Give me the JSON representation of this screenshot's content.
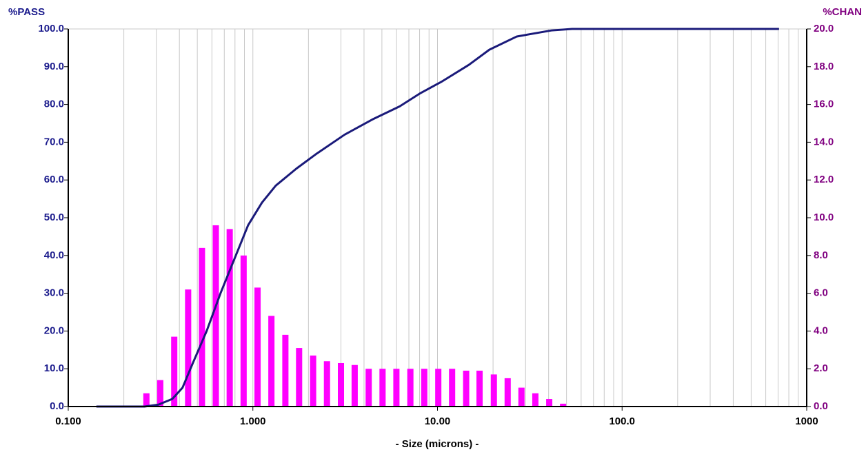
{
  "chart_data": {
    "type": "combo",
    "xlabel": "- Size (microns) -",
    "ylabel": "%PASS",
    "y2label": "%CHAN",
    "xlog": true,
    "xlim": [
      0.1,
      1000
    ],
    "xticks": [
      {
        "value": 0.1,
        "label": "0.100"
      },
      {
        "value": 1,
        "label": "1.000"
      },
      {
        "value": 10,
        "label": "10.00"
      },
      {
        "value": 100,
        "label": "100.0"
      },
      1000
    ],
    "xminorticks": [
      0.2,
      0.3,
      0.4,
      0.5,
      0.6,
      0.7,
      0.8,
      0.9,
      2,
      3,
      4,
      5,
      6,
      7,
      8,
      9,
      20,
      30,
      40,
      50,
      60,
      70,
      80,
      90,
      200,
      300,
      400,
      500,
      600,
      700,
      800,
      900
    ],
    "grid": true,
    "ylim": [
      0,
      100
    ],
    "yticks": [
      {
        "value": 0,
        "label": "0.0"
      },
      {
        "value": 10,
        "label": "10.0"
      },
      {
        "value": 20,
        "label": "20.0"
      },
      {
        "value": 30,
        "label": "30.0"
      },
      {
        "value": 40,
        "label": "40.0"
      },
      {
        "value": 50,
        "label": "50.0"
      },
      {
        "value": 60,
        "label": "60.0"
      },
      {
        "value": 70,
        "label": "70.0"
      },
      {
        "value": 80,
        "label": "80.0"
      },
      {
        "value": 90,
        "label": "90.0"
      },
      {
        "value": 100,
        "label": "100.0"
      }
    ],
    "y2lim": [
      0,
      20
    ],
    "y2ticks": [
      {
        "value": 0,
        "label": "0.0"
      },
      {
        "value": 2,
        "label": "2.0"
      },
      {
        "value": 4,
        "label": "4.0"
      },
      {
        "value": 6,
        "label": "6.0"
      },
      {
        "value": 8,
        "label": "8.0"
      },
      {
        "value": 10,
        "label": "10.0"
      },
      {
        "value": 12,
        "label": "12.0"
      },
      {
        "value": 14,
        "label": "14.0"
      },
      {
        "value": 16,
        "label": "16.0"
      },
      {
        "value": 18,
        "label": "18.0"
      },
      {
        "value": 20,
        "label": "20.0"
      }
    ],
    "ycolor": "#1a1a8c",
    "y2color": "#800080",
    "series": [
      {
        "type": "bar",
        "axis": "y2",
        "color": "#ff00ff",
        "x": [
          0.265,
          0.315,
          0.375,
          0.446,
          0.53,
          0.63,
          0.749,
          0.891,
          1.06,
          1.26,
          1.5,
          1.78,
          2.12,
          2.52,
          3.0,
          3.56,
          4.24,
          5.04,
          5.99,
          7.13,
          8.48,
          10.1,
          12.0,
          14.3,
          16.9,
          20.2,
          24.0,
          28.5,
          33.9,
          40.3,
          47.9
        ],
        "values": [
          0.7,
          1.4,
          3.7,
          6.2,
          8.4,
          9.6,
          9.4,
          8.0,
          6.3,
          4.8,
          3.8,
          3.1,
          2.7,
          2.4,
          2.3,
          2.2,
          2.0,
          2.0,
          2.0,
          2.0,
          2.0,
          2.0,
          2.0,
          1.9,
          1.9,
          1.7,
          1.5,
          1.0,
          0.7,
          0.4,
          0.15
        ]
      },
      {
        "type": "line",
        "color": "#1a1a7a",
        "x": [
          0.142,
          0.259,
          0.308,
          0.366,
          0.416,
          0.473,
          0.562,
          0.668,
          0.793,
          0.942,
          1.12,
          1.33,
          1.72,
          2.22,
          3.14,
          4.43,
          6.24,
          8.09,
          10.5,
          14.8,
          19.1,
          26.9,
          41.4,
          53.6,
          708
        ],
        "values": [
          0,
          0,
          0.5,
          2,
          5,
          11.5,
          20,
          30,
          39,
          48,
          54,
          58.5,
          63,
          67,
          72,
          76,
          79.5,
          83,
          86,
          90.5,
          94.5,
          98,
          99.6,
          100,
          100
        ]
      }
    ]
  }
}
